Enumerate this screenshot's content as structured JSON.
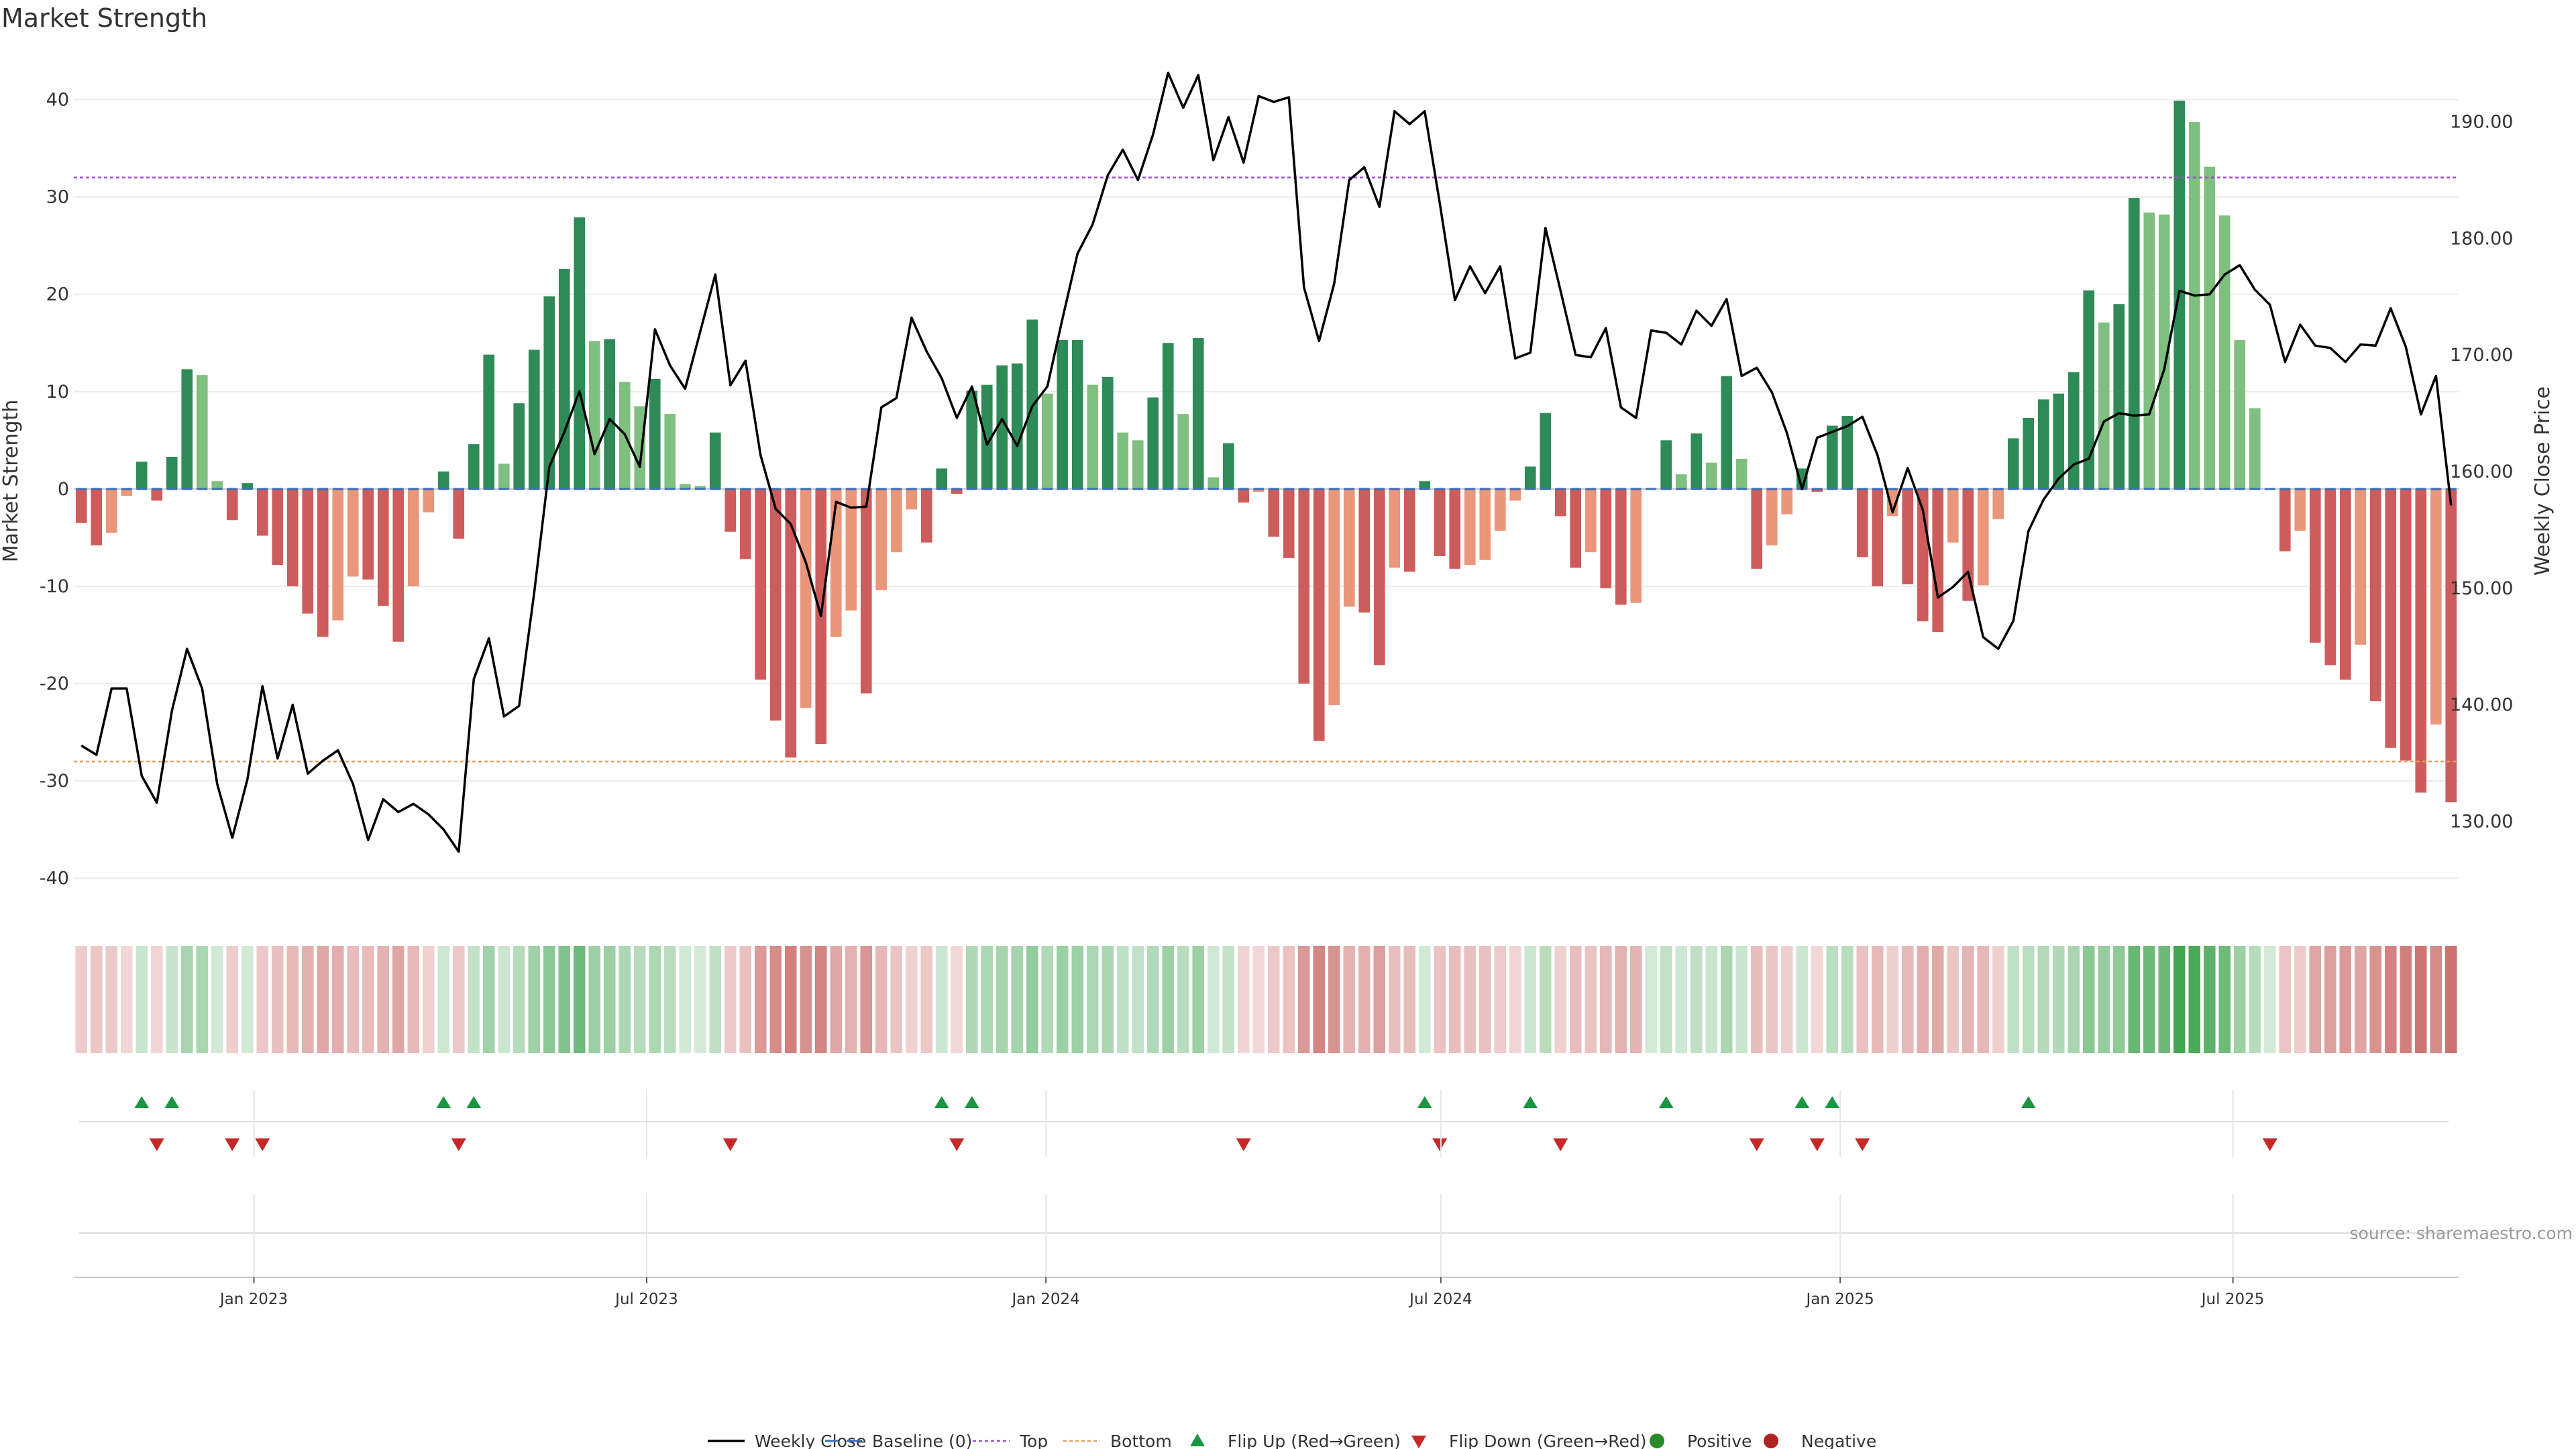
{
  "colors": {
    "strong_green": "#2e8b57",
    "light_green": "#7fbf7f",
    "strong_red": "#cd5c5c",
    "light_red": "#e9967a",
    "price_line": "#000000",
    "top_line": "#9b4fd6",
    "bottom_line": "#e8a060",
    "baseline": "#3b6fb6",
    "flip_up": "#1a9641",
    "flip_down": "#c62828",
    "positive_dot": "#2a8a2a",
    "negative_dot": "#b22222",
    "heat_green": "#3aa04a",
    "heat_red": "#c0504d"
  },
  "chart_data": {
    "type": "bar",
    "title": "Market Strength",
    "ylabel": "Market Strength",
    "y2label": "Weekly Close Price",
    "ylim": [
      -43.5,
      43
    ],
    "y2lim": [
      122.2,
      194.4
    ],
    "yticks": [
      40,
      30,
      20,
      10,
      0,
      -10,
      -20,
      -30,
      -40
    ],
    "y2ticks": [
      "190.00",
      "180.00",
      "170.00",
      "160.00",
      "150.00",
      "140.00",
      "130.00"
    ],
    "x_start": "2022-10-10",
    "x_end": "2025-10-13",
    "xticks": [
      {
        "date": "2023-01-01",
        "label": "Jan 2023"
      },
      {
        "date": "2023-07-01",
        "label": "Jul 2023"
      },
      {
        "date": "2024-01-01",
        "label": "Jan 2024"
      },
      {
        "date": "2024-07-01",
        "label": "Jul 2024"
      },
      {
        "date": "2025-01-01",
        "label": "Jan 2025"
      },
      {
        "date": "2025-07-01",
        "label": "Jul 2025"
      }
    ],
    "top_level": 32,
    "bottom_level": -28,
    "grid": true,
    "legend_position": "bottom-center",
    "strength": [
      -3.5,
      -5.8,
      -4.5,
      -0.7,
      2.8,
      -1.2,
      3.3,
      12.3,
      11.7,
      0.8,
      -3.2,
      0.6,
      -4.8,
      -7.8,
      -10,
      -12.8,
      -15.2,
      -13.5,
      -9,
      -9.3,
      -12,
      -15.7,
      -10,
      -2.4,
      1.8,
      -5.1,
      4.6,
      13.8,
      2.6,
      8.8,
      14.3,
      19.8,
      22.6,
      27.9,
      15.2,
      15.4,
      11,
      8.5,
      11.3,
      7.7,
      0.5,
      0.3,
      5.8,
      -4.4,
      -7.2,
      -19.6,
      -23.8,
      -27.6,
      -22.5,
      -26.2,
      -15.2,
      -12.5,
      -21,
      -10.4,
      -6.5,
      -2.1,
      -5.5,
      2.1,
      -0.5,
      10.1,
      10.7,
      12.7,
      12.9,
      17.4,
      9.8,
      15.3,
      15.3,
      10.7,
      11.5,
      5.8,
      5,
      9.4,
      15,
      7.7,
      15.5,
      1.2,
      4.7,
      -1.4,
      -0.3,
      -4.9,
      -7.1,
      -20,
      -25.9,
      -22.2,
      -12.1,
      -12.7,
      -18.1,
      -8.1,
      -8.5,
      0.8,
      -6.9,
      -8.2,
      -7.8,
      -7.3,
      -4.3,
      -1.2,
      2.3,
      7.8,
      -2.8,
      -8.1,
      -6.5,
      -10.2,
      -11.9,
      -11.7,
      0,
      5,
      1.5,
      5.7,
      2.7,
      11.6,
      3.1,
      -8.2,
      -5.8,
      -2.6,
      2.1,
      -0.3,
      6.5,
      7.5,
      -7,
      -10,
      -2.8,
      -9.8,
      -13.6,
      -14.7,
      -5.5,
      -11.5,
      -9.9,
      -3.1,
      5.2,
      7.3,
      9.2,
      9.8,
      12,
      20.4,
      17.1,
      19,
      29.9,
      28.4,
      28.2,
      39.9,
      37.7,
      33.1,
      28.1,
      15.3,
      8.3,
      0,
      -6.4,
      -4.3,
      -15.8,
      -18.1,
      -19.6,
      -16,
      -21.8,
      -26.6,
      -27.9,
      -31.2,
      -24.2,
      -32.2
    ],
    "weekly_close": [
      136.5,
      135.7,
      141.4,
      141.4,
      133.9,
      131.6,
      139.5,
      144.8,
      141.4,
      133.2,
      128.6,
      133.6,
      141.6,
      135.4,
      140,
      134.1,
      135.2,
      136.1,
      133.2,
      128.4,
      131.9,
      130.8,
      131.5,
      130.6,
      129.3,
      127.4,
      142.2,
      145.7,
      139,
      139.9,
      149.6,
      160.4,
      163.4,
      166.9,
      161.5,
      164.5,
      163.2,
      160.4,
      172.2,
      169.1,
      167.1,
      172,
      176.9,
      167.4,
      169.5,
      161.4,
      156.8,
      155.5,
      152.2,
      147.6,
      157.4,
      156.9,
      157,
      165.5,
      166.3,
      173.2,
      170.3,
      168,
      164.6,
      167.3,
      162.3,
      164.5,
      162.2,
      165.6,
      167.3,
      173.1,
      178.7,
      181.2,
      185.4,
      187.6,
      185,
      188.9,
      194.2,
      191.2,
      194,
      186.7,
      190.4,
      186.5,
      192.2,
      191.7,
      192.1,
      175.8,
      171.2,
      176.1,
      185,
      186.1,
      182.7,
      190.9,
      189.8,
      190.9,
      183,
      174.7,
      177.6,
      175.3,
      177.6,
      169.7,
      170.2,
      180.9,
      175.5,
      170,
      169.8,
      172.3,
      165.5,
      164.6,
      172.1,
      171.9,
      170.9,
      173.8,
      172.5,
      174.8,
      168.2,
      168.9,
      166.8,
      163.3,
      158.5,
      162.9,
      163.4,
      163.9,
      164.7,
      161.4,
      156.5,
      160.3,
      156.7,
      149.2,
      150.1,
      151.4,
      145.8,
      144.8,
      147.2,
      154.9,
      157.6,
      159.4,
      160.6,
      161.1,
      164.3,
      165,
      164.8,
      164.9,
      168.8,
      175.5,
      175.1,
      175.2,
      176.9,
      177.7,
      175.6,
      174.3,
      169.4,
      172.6,
      170.8,
      170.6,
      169.4,
      170.9,
      170.8,
      174,
      170.7,
      164.9,
      168.2,
      157.1
    ],
    "heat_strip": "Colour intensity per week follows the strength value (green positive, red negative).",
    "flip_up_weeks": [
      4,
      6,
      24,
      26,
      57,
      59,
      89,
      96,
      105,
      114,
      116,
      129
    ],
    "flip_down_weeks": [
      5,
      10,
      12,
      25,
      43,
      58,
      77,
      90,
      98,
      111,
      115,
      118,
      145
    ]
  },
  "legend": [
    {
      "key": "weekly_close",
      "label": "Weekly Close",
      "symbol": "line"
    },
    {
      "key": "baseline",
      "label": "Baseline (0)",
      "symbol": "dash"
    },
    {
      "key": "top",
      "label": "Top",
      "symbol": "dot"
    },
    {
      "key": "bottom",
      "label": "Bottom",
      "symbol": "dot2"
    },
    {
      "key": "flip_up",
      "label": "Flip Up (Red→Green)",
      "symbol": "tri-up"
    },
    {
      "key": "flip_down",
      "label": "Flip Down (Green→Red)",
      "symbol": "tri-down"
    },
    {
      "key": "positive",
      "label": "Positive",
      "symbol": "circle-pos"
    },
    {
      "key": "negative",
      "label": "Negative",
      "symbol": "circle-neg"
    }
  ],
  "source_note": "source: sharemaestro.com"
}
